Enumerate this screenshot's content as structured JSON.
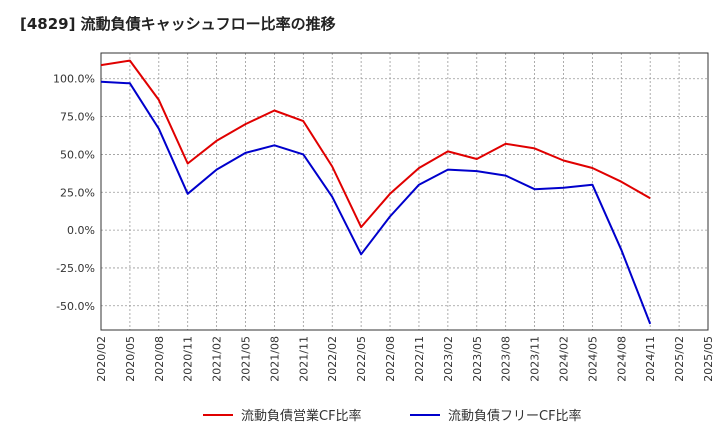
{
  "title": "[4829]  流動負債キャッシュフロー比率の推移",
  "chart_data": {
    "type": "line",
    "x": [
      "2020/02",
      "2020/05",
      "2020/08",
      "2020/11",
      "2021/02",
      "2021/05",
      "2021/08",
      "2021/11",
      "2022/02",
      "2022/05",
      "2022/08",
      "2022/11",
      "2023/02",
      "2023/05",
      "2023/08",
      "2023/11",
      "2024/02",
      "2024/05",
      "2024/08",
      "2024/11",
      "2025/02",
      "2025/05"
    ],
    "y_ticks": [
      "100.0%",
      "75.0%",
      "50.0%",
      "25.0%",
      "0.0%",
      "-25.0%",
      "-50.0%"
    ],
    "y_tick_values": [
      100,
      75,
      50,
      25,
      0,
      -25,
      -50
    ],
    "ylim": [
      -66,
      117
    ],
    "grid": true,
    "legend_position": "bottom",
    "series": [
      {
        "name": "流動負債営業CF比率",
        "color": "#e00000",
        "values": [
          109,
          112,
          86,
          44,
          59,
          70,
          79,
          72,
          42,
          2,
          24,
          41,
          52,
          47,
          57,
          54,
          46,
          41,
          32,
          21,
          null,
          null
        ]
      },
      {
        "name": "流動負債フリーCF比率",
        "color": "#0000cc",
        "values": [
          98,
          97,
          67,
          24,
          40,
          51,
          56,
          50,
          22,
          -16,
          9,
          30,
          40,
          39,
          36,
          27,
          28,
          30,
          -13,
          -62,
          null,
          null
        ]
      }
    ]
  }
}
